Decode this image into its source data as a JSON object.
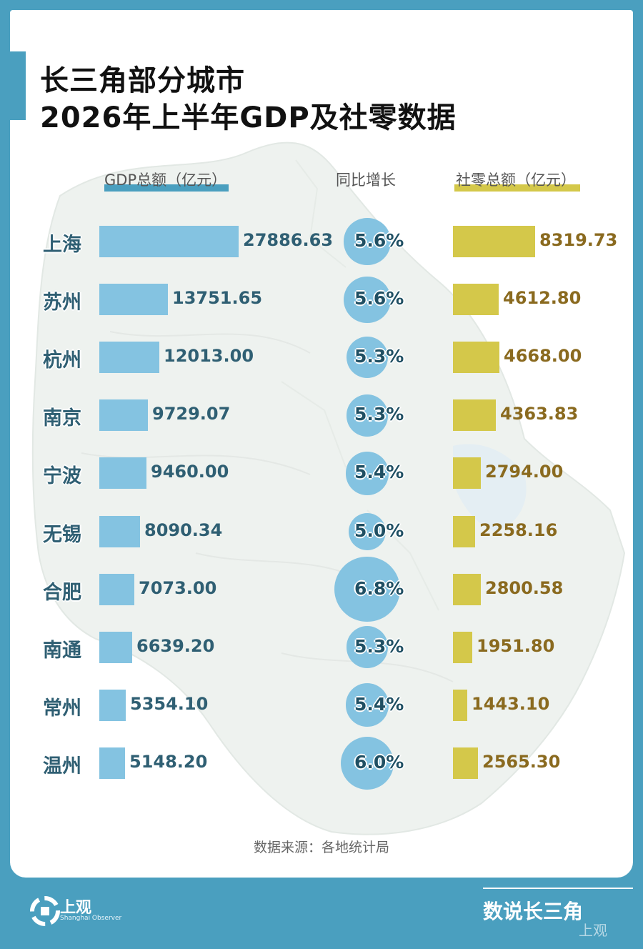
{
  "title": {
    "line1": "长三角部分城市",
    "line2": "2026年上半年GDP及社零数据"
  },
  "headers": {
    "gdp": "GDP总额（亿元）",
    "growth": "同比增长",
    "retail": "社零总额（亿元）"
  },
  "source": "数据来源：各地统计局",
  "footer": {
    "brand": "上观",
    "brand_en": "Shanghai Observer",
    "series": "数说长三角",
    "watermark": "上观"
  },
  "colors": {
    "frame": "#4a9fbf",
    "gdp_bar": "#84c3e1",
    "growth_circle": "#84c3e1",
    "retail_bar": "#d4c84a",
    "city_text": "#2f5f73",
    "retail_text": "#8a6a1f"
  },
  "chart_data": {
    "type": "bar",
    "title": "长三角部分城市 2026年上半年GDP及社零数据",
    "categories": [
      "上海",
      "苏州",
      "杭州",
      "南京",
      "宁波",
      "无锡",
      "合肥",
      "南通",
      "常州",
      "温州"
    ],
    "series": [
      {
        "name": "GDP总额（亿元）",
        "values": [
          27886.63,
          13751.65,
          12013.0,
          9729.07,
          9460.0,
          8090.34,
          7073.0,
          6639.2,
          5354.1,
          5148.2
        ],
        "labels": [
          "27886.63",
          "13751.65",
          "12013.00",
          "9729.07",
          "9460.00",
          "8090.34",
          "7073.00",
          "6639.20",
          "5354.10",
          "5148.20"
        ]
      },
      {
        "name": "同比增长",
        "values": [
          5.6,
          5.6,
          5.3,
          5.3,
          5.4,
          5.0,
          6.8,
          5.3,
          5.4,
          6.0
        ],
        "labels": [
          "5.6%",
          "5.6%",
          "5.3%",
          "5.3%",
          "5.4%",
          "5.0%",
          "6.8%",
          "5.3%",
          "5.4%",
          "6.0%"
        ]
      },
      {
        "name": "社零总额（亿元）",
        "values": [
          8319.73,
          4612.8,
          4668.0,
          4363.83,
          2794.0,
          2258.16,
          2800.58,
          1951.8,
          1443.1,
          2565.3
        ],
        "labels": [
          "8319.73",
          "4612.80",
          "4668.00",
          "4363.83",
          "2794.00",
          "2258.16",
          "2800.58",
          "1951.80",
          "1443.10",
          "2565.30"
        ]
      }
    ]
  }
}
